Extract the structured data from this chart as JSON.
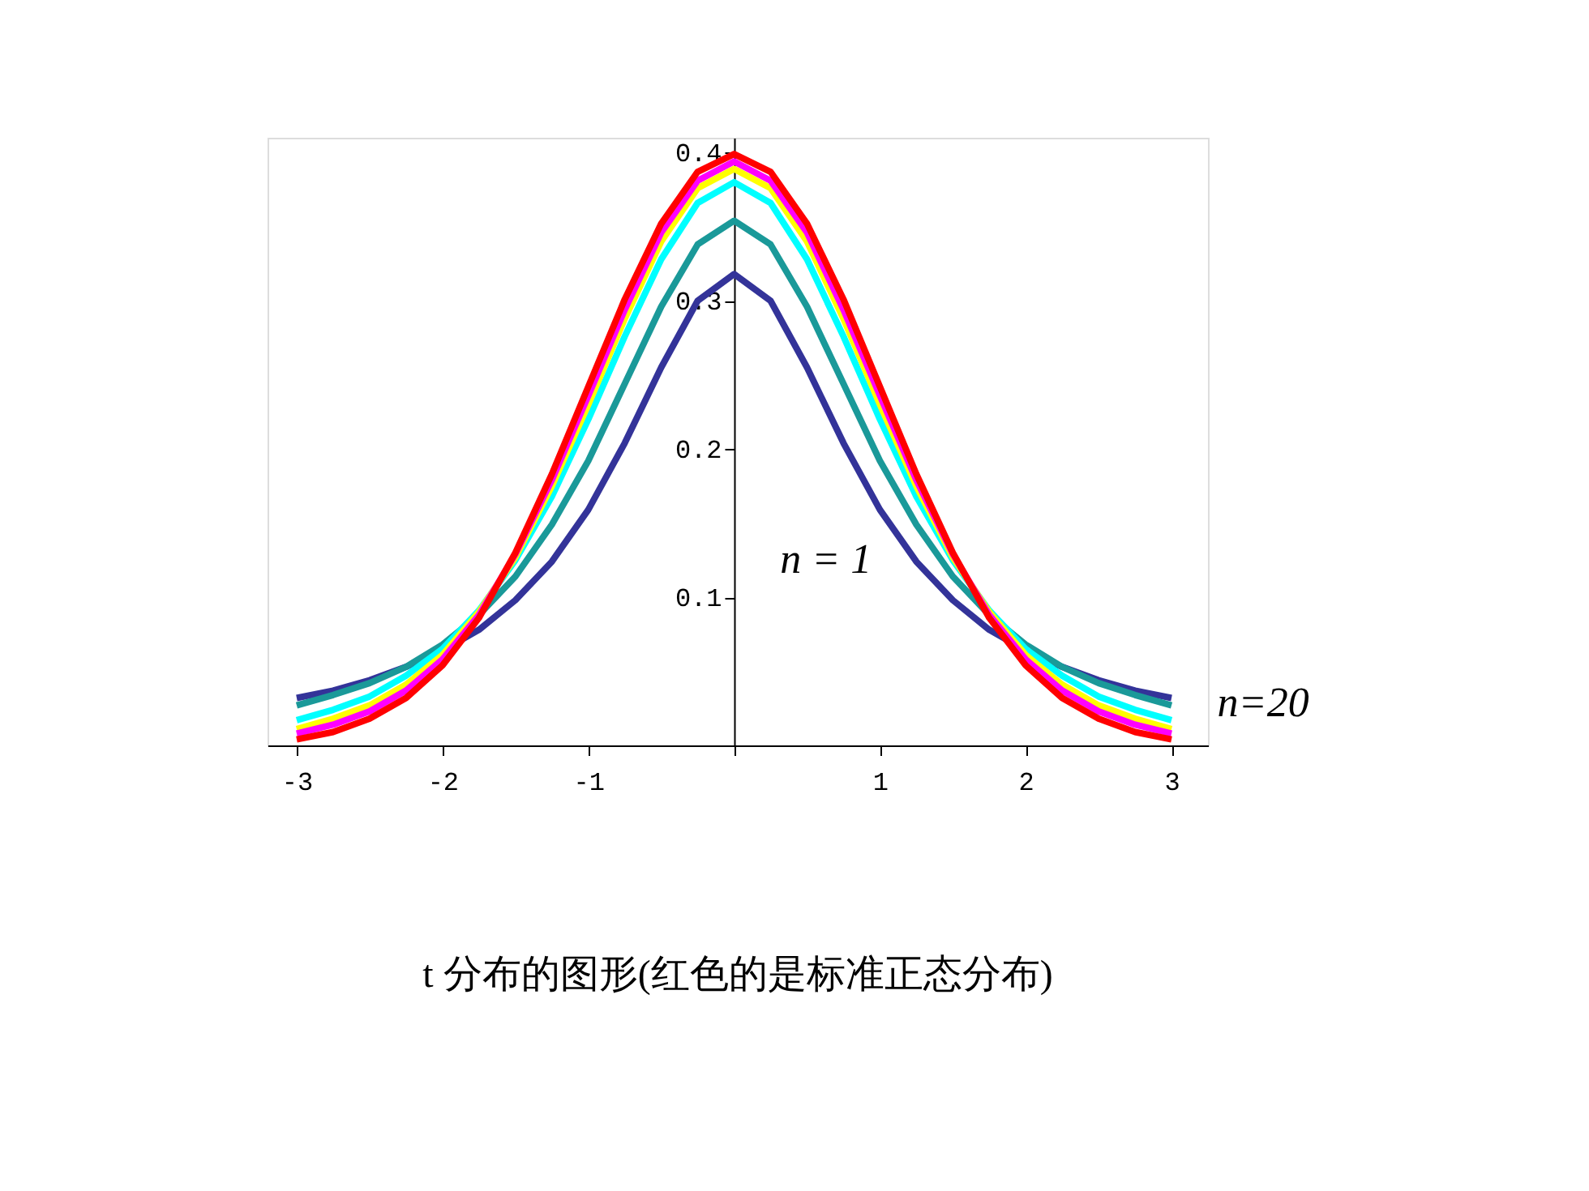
{
  "chart_data": {
    "type": "line",
    "title": "t 分布的图形(红色的是标准正态分布)",
    "x": [
      -3,
      -2.75,
      -2.5,
      -2.25,
      -2,
      -1.75,
      -1.5,
      -1.25,
      -1,
      -0.75,
      -0.5,
      -0.25,
      0,
      0.25,
      0.5,
      0.75,
      1,
      1.25,
      1.5,
      1.75,
      2,
      2.25,
      2.5,
      2.75,
      3
    ],
    "series": [
      {
        "color": "#333399",
        "values": [
          0.032,
          0.037,
          0.044,
          0.053,
          0.064,
          0.078,
          0.098,
          0.124,
          0.159,
          0.204,
          0.255,
          0.3,
          0.318,
          0.3,
          0.255,
          0.204,
          0.159,
          0.124,
          0.098,
          0.078,
          0.064,
          0.053,
          0.044,
          0.037,
          0.032
        ]
      },
      {
        "color": "#1a9999",
        "values": [
          0.027,
          0.034,
          0.042,
          0.053,
          0.068,
          0.088,
          0.114,
          0.149,
          0.192,
          0.244,
          0.296,
          0.338,
          0.354,
          0.338,
          0.296,
          0.244,
          0.192,
          0.149,
          0.114,
          0.088,
          0.068,
          0.053,
          0.042,
          0.034,
          0.027
        ]
      },
      {
        "color": "#00ffff",
        "values": [
          0.017,
          0.024,
          0.033,
          0.047,
          0.065,
          0.091,
          0.125,
          0.168,
          0.22,
          0.276,
          0.328,
          0.366,
          0.38,
          0.366,
          0.328,
          0.276,
          0.22,
          0.168,
          0.125,
          0.091,
          0.065,
          0.047,
          0.033,
          0.024,
          0.017
        ]
      },
      {
        "color": "#ffff00",
        "values": [
          0.011,
          0.018,
          0.027,
          0.041,
          0.061,
          0.09,
          0.127,
          0.175,
          0.23,
          0.288,
          0.34,
          0.376,
          0.389,
          0.376,
          0.34,
          0.288,
          0.23,
          0.175,
          0.127,
          0.09,
          0.061,
          0.041,
          0.027,
          0.018,
          0.011
        ]
      },
      {
        "color": "#ff00ff",
        "values": [
          0.008,
          0.014,
          0.023,
          0.037,
          0.058,
          0.088,
          0.129,
          0.179,
          0.236,
          0.294,
          0.346,
          0.381,
          0.394,
          0.381,
          0.346,
          0.294,
          0.236,
          0.179,
          0.129,
          0.088,
          0.058,
          0.037,
          0.023,
          0.014,
          0.008
        ]
      },
      {
        "color": "#ff0000",
        "values": [
          0.004,
          0.009,
          0.018,
          0.032,
          0.054,
          0.086,
          0.13,
          0.183,
          0.242,
          0.301,
          0.352,
          0.387,
          0.399,
          0.387,
          0.352,
          0.301,
          0.242,
          0.183,
          0.13,
          0.086,
          0.054,
          0.032,
          0.018,
          0.009,
          0.004
        ]
      }
    ],
    "xlim": [
      -3.2,
      3.25
    ],
    "ylim": [
      0,
      0.41
    ],
    "xticks": [
      -3,
      -2,
      -1,
      {
        "value": 0,
        "label": null
      },
      1,
      2,
      3
    ],
    "yticks": [
      0.1,
      0.2,
      0.3,
      0.4
    ],
    "annotations": [
      "n = 1",
      "n=20"
    ],
    "grid": false,
    "marker": "none",
    "line_style": "solid"
  }
}
